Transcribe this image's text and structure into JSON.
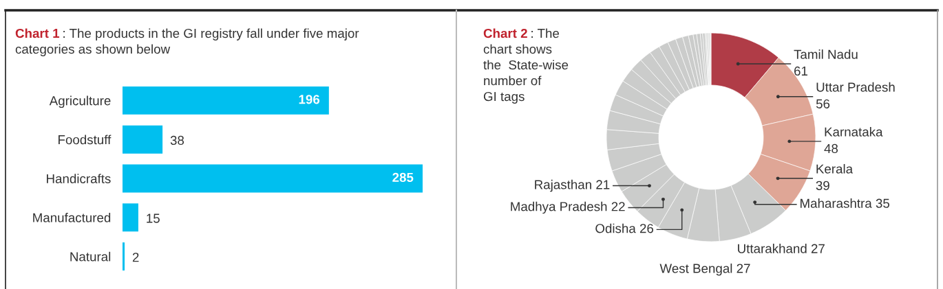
{
  "chart_data": [
    {
      "type": "bar",
      "orientation": "horizontal",
      "title": "Chart 1",
      "subtitle": ": The products in the GI registry fall under five major\ncategories as shown below",
      "categories": [
        "Agriculture",
        "Foodstuff",
        "Handicrafts",
        "Manufactured",
        "Natural"
      ],
      "values": [
        196,
        38,
        285,
        15,
        2
      ],
      "color": "#00bfef",
      "data_labels": true
    },
    {
      "type": "donut",
      "title": "Chart 2",
      "subtitle": ": The\nchart shows\nthe  State-wise\nnumber of\nGI tags",
      "categories": [
        "Tamil Nadu",
        "Uttar Pradesh",
        "Karnataka",
        "Kerala",
        "Maharashtra",
        "Uttarakhand",
        "West Bengal",
        "Odisha",
        "Madhya Pradesh",
        "Rajasthan",
        null,
        null,
        null,
        null,
        null,
        null,
        null,
        null,
        null,
        null,
        null,
        null,
        null,
        null,
        null,
        null,
        null,
        null,
        null,
        null,
        null,
        null,
        null,
        null
      ],
      "values": [
        61,
        56,
        48,
        39,
        35,
        27,
        27,
        26,
        22,
        21,
        19,
        18,
        17,
        16,
        14,
        13,
        12,
        11,
        10,
        9,
        8,
        7,
        6,
        5,
        4,
        3,
        3,
        2,
        2,
        1,
        1,
        1,
        1,
        1
      ],
      "value_labels": [
        "61",
        "56",
        "48",
        "39",
        "35",
        "27",
        "27",
        "26",
        "22",
        "21",
        null,
        null,
        null,
        null,
        null,
        null,
        null,
        null,
        null,
        null,
        null,
        null,
        null,
        null,
        null,
        null,
        null,
        null,
        null,
        null,
        null,
        null,
        null,
        null
      ],
      "colors": [
        "#b03c47",
        "#dfa696",
        "#dfa696",
        "#dfa696",
        "#cbcccb",
        "#cbcccb",
        "#cbcccb",
        "#cbcccb",
        "#cbcccb",
        "#cbcccb",
        "#cbcccb",
        "#cbcccb",
        "#cbcccb",
        "#cbcccb",
        "#cbcccb",
        "#cbcccb",
        "#cbcccb",
        "#cbcccb",
        "#cbcccb",
        "#cbcccb",
        "#cbcccb",
        "#cbcccb",
        "#cbcccb",
        "#cbcccb",
        "#cbcccb",
        "#cbcccb",
        "#cbcccb",
        "#cbcccb",
        "#cbcccb",
        "#cbcccb",
        "#cbcccb",
        "#cbcccb",
        "#cbcccb",
        "#e6e6e6"
      ]
    }
  ]
}
